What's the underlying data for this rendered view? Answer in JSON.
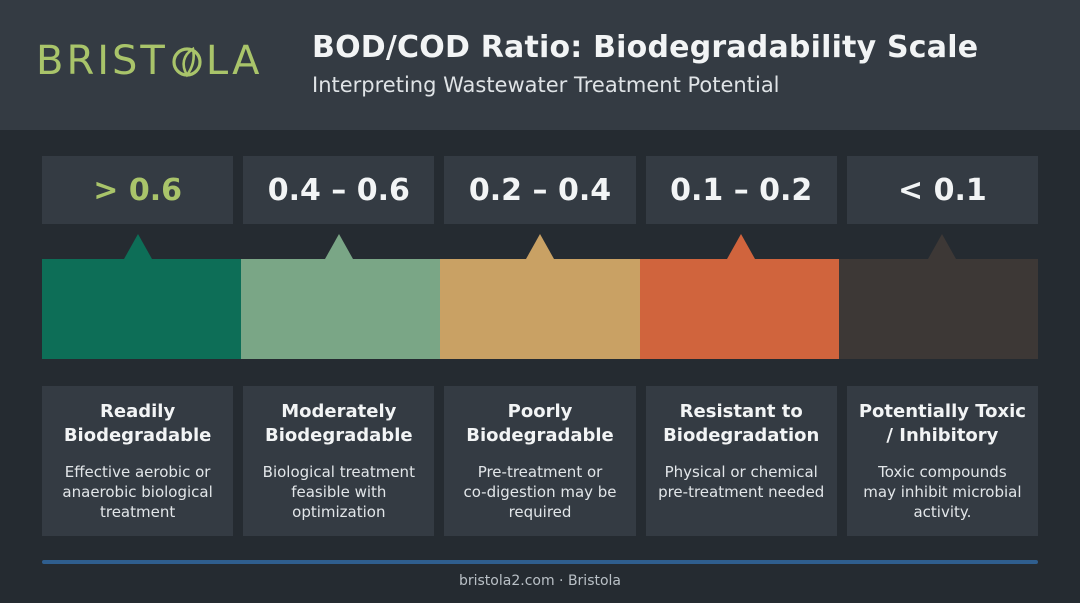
{
  "brand": {
    "logo_text_left": "BRIST",
    "logo_text_right": "LA",
    "logo_color": "#a9c46a"
  },
  "header": {
    "title": "BOD/COD Ratio: Biodegradability Scale",
    "subtitle": "Interpreting Wastewater Treatment Potential"
  },
  "scale": [
    {
      "range": "> 0.6",
      "color": "#0d6e57",
      "title": "Readily\nBiodegradable",
      "description": "Effective aerobic or\nanaerobic biological\ntreatment"
    },
    {
      "range": "0.4 – 0.6",
      "color": "#7aa686",
      "title": "Moderately\nBiodegradable",
      "description": "Biological treatment\nfeasible with\noptimization"
    },
    {
      "range": "0.2 – 0.4",
      "color": "#c9a164",
      "title": "Poorly\nBiodegradable",
      "description": "Pre-treatment or\nco-digestion may be\nrequired"
    },
    {
      "range": "0.1 – 0.2",
      "color": "#d0643d",
      "title": "Resistant to\nBiodegradation",
      "description": "Physical or chemical\npre-treatment needed"
    },
    {
      "range": "< 0.1",
      "color": "#3d3836",
      "title": "Potentially Toxic\n/ Inhibitory",
      "description": "Toxic compounds\nmay inhibit microbial\nactivity."
    }
  ],
  "footer": {
    "text": "bristola2.com · Bristola"
  }
}
